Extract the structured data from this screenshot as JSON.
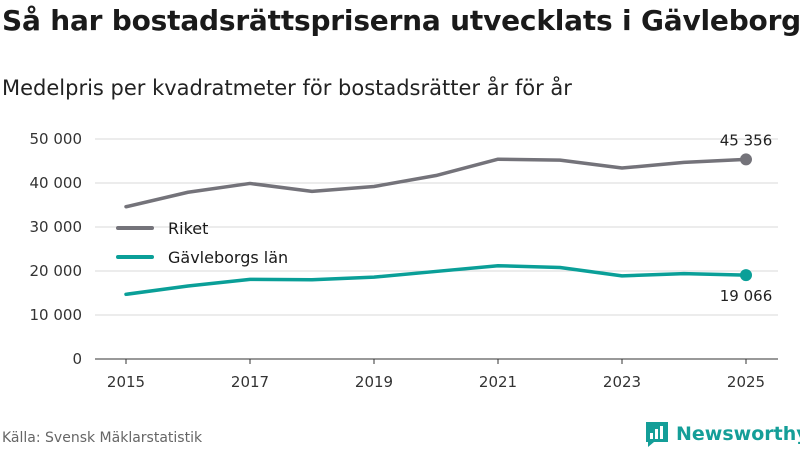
{
  "title": "Så har bostadsrättspriserna utvecklats i Gävleborg",
  "subtitle": "Medelpris per kvadratmeter för bostadsrätter år för år",
  "source": "Källa: Svensk Mäklarstatistik",
  "brand": {
    "name": "Newsworthy",
    "icon": "newsworthy-logo-icon",
    "color": "#149e98"
  },
  "chart_data": {
    "type": "line",
    "title": "Så har bostadsrättspriserna utvecklats i Gävleborg",
    "subtitle": "Medelpris per kvadratmeter för bostadsrätter år för år",
    "xlabel": "",
    "ylabel": "",
    "x": [
      2015,
      2016,
      2017,
      2018,
      2019,
      2020,
      2021,
      2022,
      2023,
      2024,
      2025
    ],
    "xticks": [
      2015,
      2017,
      2019,
      2021,
      2023,
      2025
    ],
    "xtick_labels": [
      "2015",
      "2017",
      "2019",
      "2021",
      "2023",
      "2025"
    ],
    "yticks": [
      0,
      10000,
      20000,
      30000,
      40000,
      50000
    ],
    "ytick_labels": [
      "0",
      "10 000",
      "20 000",
      "30 000",
      "40 000",
      "50 000"
    ],
    "ylim": [
      0,
      50000
    ],
    "xlim": [
      2015,
      2025
    ],
    "grid": true,
    "legend_position": "left-middle",
    "series": [
      {
        "name": "Riket",
        "color": "#74737a",
        "values": [
          34600,
          37900,
          39900,
          38100,
          39200,
          41700,
          45400,
          45200,
          43400,
          44700,
          45356
        ],
        "end_label": "45 356",
        "end_label_position": "above"
      },
      {
        "name": "Gävleborgs län",
        "color": "#0a9f98",
        "values": [
          14700,
          16600,
          18100,
          18000,
          18600,
          19900,
          21200,
          20800,
          18900,
          19400,
          19066
        ],
        "end_label": "19 066",
        "end_label_position": "below"
      }
    ]
  }
}
